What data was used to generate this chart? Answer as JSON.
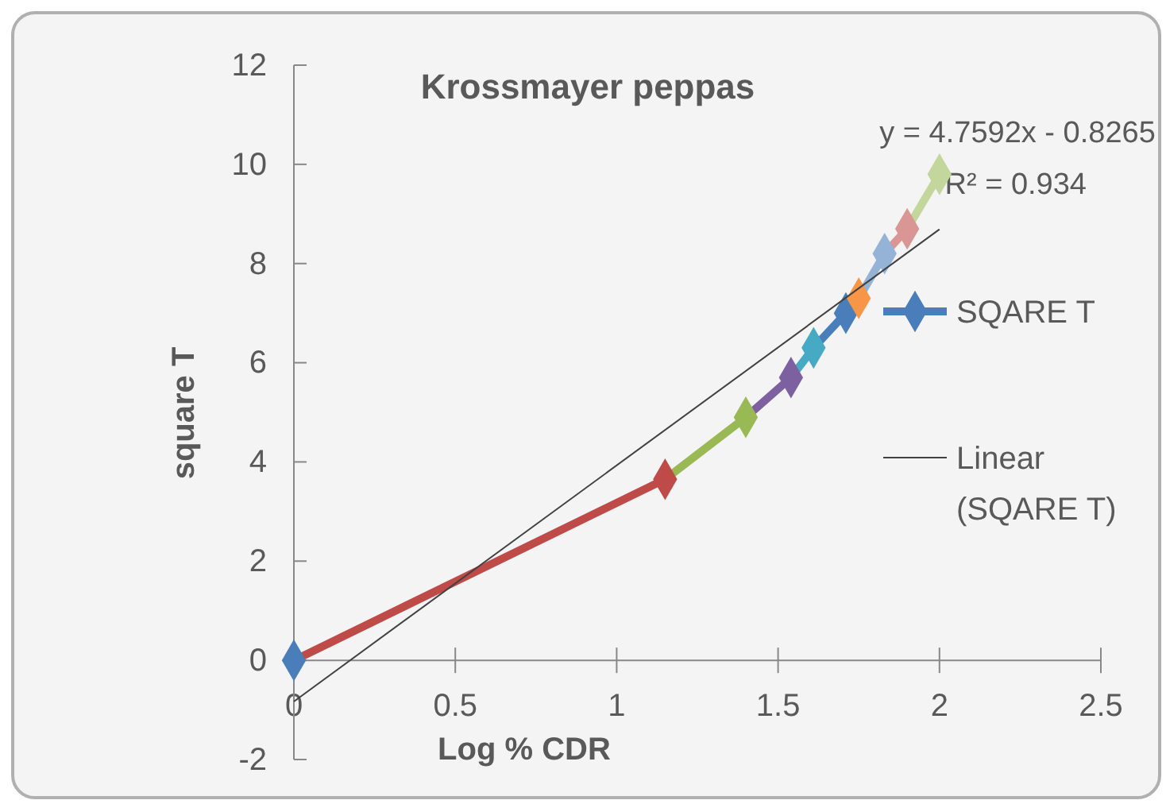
{
  "chart_data": {
    "type": "line",
    "title": "Krossmayer peppas",
    "xlabel": "Log % CDR",
    "ylabel": "square T",
    "xlim": [
      0,
      2.5
    ],
    "xticks": [
      0,
      0.5,
      1,
      1.5,
      2,
      2.5
    ],
    "ylim": [
      -2,
      12
    ],
    "yticks": [
      -2,
      0,
      2,
      4,
      6,
      8,
      10,
      12
    ],
    "grid": false,
    "legend": "right",
    "marker": "diamond",
    "annotations": [
      {
        "text": "y = 4.7592x - 0.8265",
        "x": 2,
        "y": 8.69
      },
      "R² = 0.934"
    ],
    "series": [
      {
        "name": "SQARE T",
        "color": "#4a7ebb",
        "colors": [
          "#4a7ebb",
          "#be4b48",
          "#98b954",
          "#7d60a0",
          "#46aac5",
          "#4a7ebb",
          "#f79646",
          "#95b3d7",
          "#d99694",
          "#c3d69b"
        ],
        "x": [
          0,
          1.15,
          1.4,
          1.54,
          1.61,
          1.71,
          1.75,
          1.83,
          1.9,
          2.0
        ],
        "values": [
          0,
          3.65,
          4.9,
          5.7,
          6.3,
          7.0,
          7.3,
          8.2,
          8.7,
          9.8
        ]
      },
      {
        "name": "Linear (SQARE T)",
        "type": "line",
        "color": "#404040",
        "marker": "none",
        "x": [
          0,
          2
        ],
        "values": [
          -0.83,
          8.69
        ]
      }
    ]
  }
}
